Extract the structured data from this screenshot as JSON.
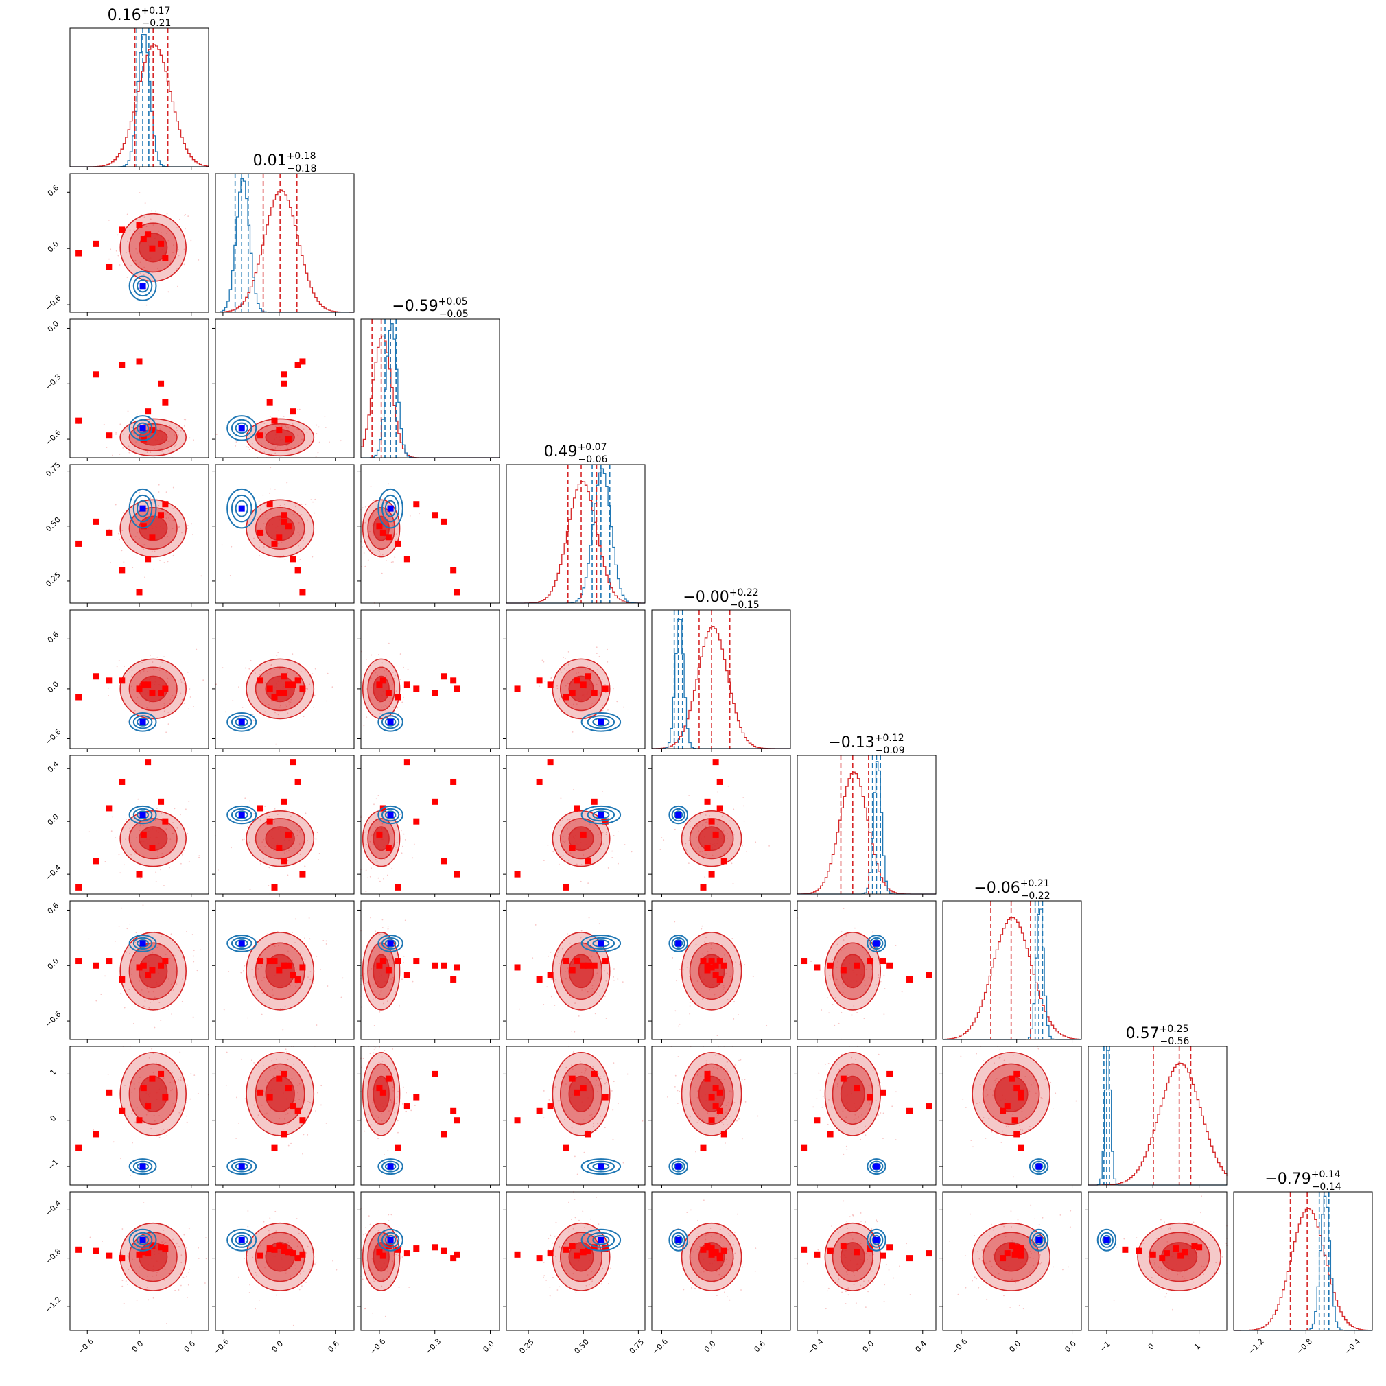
{
  "chart_data": {
    "type": "corner",
    "n_params": 9,
    "colors": {
      "red_series": "#d62728",
      "blue_series": "#1f77b4",
      "truth_markers": "#ff0000",
      "reference_marker": "#0000ff"
    },
    "titles": [
      {
        "value": "0.16",
        "plus": "+0.17",
        "minus": "−0.21"
      },
      {
        "value": "0.01",
        "plus": "+0.18",
        "minus": "−0.18"
      },
      {
        "value": "−0.59",
        "plus": "+0.05",
        "minus": "−0.05"
      },
      {
        "value": "0.49",
        "plus": "+0.07",
        "minus": "−0.06"
      },
      {
        "value": "−0.00",
        "plus": "+0.22",
        "minus": "−0.15"
      },
      {
        "value": "−0.13",
        "plus": "+0.12",
        "minus": "−0.09"
      },
      {
        "value": "−0.06",
        "plus": "+0.21",
        "minus": "−0.22"
      },
      {
        "value": "0.57",
        "plus": "+0.25",
        "minus": "−0.56"
      },
      {
        "value": "−0.79",
        "plus": "+0.14",
        "minus": "−0.14"
      }
    ],
    "ranges": [
      [
        -0.8,
        0.8
      ],
      [
        -0.68,
        0.8
      ],
      [
        -0.7,
        0.05
      ],
      [
        0.15,
        0.78
      ],
      [
        -0.72,
        0.95
      ],
      [
        -0.55,
        0.5
      ],
      [
        -0.8,
        0.7
      ],
      [
        -1.4,
        1.6
      ],
      [
        -1.4,
        -0.25
      ]
    ],
    "ticks": [
      [
        {
          "v": -0.6,
          "label": "−0.6"
        },
        {
          "v": 0.0,
          "label": "0.0"
        },
        {
          "v": 0.6,
          "label": "0.6"
        }
      ],
      [
        {
          "v": -0.6,
          "label": "−0.6"
        },
        {
          "v": 0.0,
          "label": "0.0"
        },
        {
          "v": 0.6,
          "label": "0.6"
        }
      ],
      [
        {
          "v": -0.6,
          "label": "−0.6"
        },
        {
          "v": -0.3,
          "label": "−0.3"
        },
        {
          "v": 0.0,
          "label": "0.0"
        }
      ],
      [
        {
          "v": 0.25,
          "label": "0.25"
        },
        {
          "v": 0.5,
          "label": "0.50"
        },
        {
          "v": 0.75,
          "label": "0.75"
        }
      ],
      [
        {
          "v": -0.6,
          "label": "−0.6"
        },
        {
          "v": 0.0,
          "label": "0.0"
        },
        {
          "v": 0.6,
          "label": "0.6"
        }
      ],
      [
        {
          "v": -0.4,
          "label": "−0.4"
        },
        {
          "v": 0.0,
          "label": "0.0"
        },
        {
          "v": 0.4,
          "label": "0.4"
        }
      ],
      [
        {
          "v": -0.6,
          "label": "−0.6"
        },
        {
          "v": 0.0,
          "label": "0.0"
        },
        {
          "v": 0.6,
          "label": "0.6"
        }
      ],
      [
        {
          "v": -1,
          "label": "−1"
        },
        {
          "v": 0,
          "label": "0"
        },
        {
          "v": 1,
          "label": "1"
        }
      ],
      [
        {
          "v": -1.2,
          "label": "−1.2"
        },
        {
          "v": -0.8,
          "label": "−0.8"
        },
        {
          "v": -0.4,
          "label": "−0.4"
        }
      ]
    ],
    "red_posterior": {
      "mean": [
        0.16,
        0.01,
        -0.59,
        0.49,
        -0.0,
        -0.13,
        -0.06,
        0.57,
        -0.79
      ],
      "sigma": [
        0.19,
        0.18,
        0.05,
        0.065,
        0.18,
        0.105,
        0.21,
        0.45,
        0.14
      ],
      "quantiles": [
        [
          -0.05,
          0.33
        ],
        [
          -0.17,
          0.19
        ],
        [
          -0.64,
          -0.54
        ],
        [
          0.43,
          0.56
        ],
        [
          -0.15,
          0.22
        ],
        [
          -0.22,
          -0.01
        ],
        [
          -0.28,
          0.15
        ],
        [
          0.01,
          0.82
        ],
        [
          -0.93,
          -0.65
        ]
      ]
    },
    "blue_posterior": {
      "mean": [
        0.04,
        -0.4,
        -0.54,
        0.58,
        -0.4,
        0.05,
        0.24,
        -1.0,
        -0.65
      ],
      "sigma": [
        0.07,
        0.07,
        0.03,
        0.04,
        0.05,
        0.03,
        0.04,
        0.06,
        0.04
      ],
      "quantiles": [
        [
          -0.03,
          0.11
        ],
        [
          -0.47,
          -0.33
        ],
        [
          -0.57,
          -0.51
        ],
        [
          0.54,
          0.62
        ],
        [
          -0.45,
          -0.35
        ],
        [
          0.02,
          0.08
        ],
        [
          0.2,
          0.28
        ],
        [
          -1.06,
          -0.94
        ],
        [
          -0.69,
          -0.61
        ]
      ]
    },
    "red_markers": [
      [
        0.05,
        0.1,
        -0.6,
        0.5,
        0.05,
        -0.1,
        0.0,
        0.7,
        -0.75
      ],
      [
        0.15,
        0.0,
        -0.55,
        0.45,
        -0.05,
        -0.2,
        -0.05,
        0.9,
        -0.7
      ],
      [
        -0.2,
        0.2,
        -0.2,
        0.3,
        0.1,
        0.3,
        -0.15,
        0.2,
        -0.8
      ],
      [
        0.3,
        -0.1,
        -0.4,
        0.6,
        0.0,
        0.0,
        0.05,
        0.5,
        -0.72
      ],
      [
        -0.5,
        0.05,
        -0.25,
        0.52,
        0.15,
        -0.3,
        0.0,
        -0.3,
        -0.74
      ],
      [
        0.1,
        0.15,
        -0.45,
        0.35,
        0.05,
        0.45,
        -0.1,
        0.3,
        -0.76
      ],
      [
        -0.7,
        -0.05,
        -0.5,
        0.42,
        -0.1,
        -0.5,
        0.05,
        -0.6,
        -0.73
      ],
      [
        0.25,
        0.05,
        -0.3,
        0.55,
        -0.05,
        0.15,
        0.0,
        1.0,
        -0.71
      ],
      [
        0.0,
        0.25,
        -0.18,
        0.2,
        0.0,
        -0.4,
        -0.02,
        0.0,
        -0.77
      ],
      [
        -0.35,
        -0.2,
        -0.58,
        0.47,
        0.1,
        0.1,
        0.05,
        0.6,
        -0.78
      ]
    ]
  }
}
